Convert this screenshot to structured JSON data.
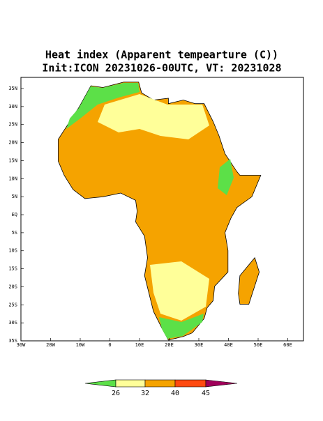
{
  "header": {
    "title": "Heat index (Apparent tempearture (C))",
    "subtitle": "Init:ICON 20231026-00UTC, VT: 20231028"
  },
  "map": {
    "lat_labels": [
      "35N",
      "30N",
      "25N",
      "20N",
      "15N",
      "10N",
      "5N",
      "EQ",
      "5S",
      "10S",
      "15S",
      "20S",
      "25S",
      "30S",
      "35S"
    ],
    "lon_labels": [
      "30W",
      "20W",
      "10W",
      "0",
      "10E",
      "20E",
      "30E",
      "40E",
      "50E",
      "60E"
    ]
  },
  "colorbar": {
    "levels": [
      26,
      32,
      40,
      45
    ],
    "colors": [
      "#5ce048",
      "#ffff99",
      "#f5a300",
      "#ff4a10",
      "#a0005a"
    ]
  }
}
